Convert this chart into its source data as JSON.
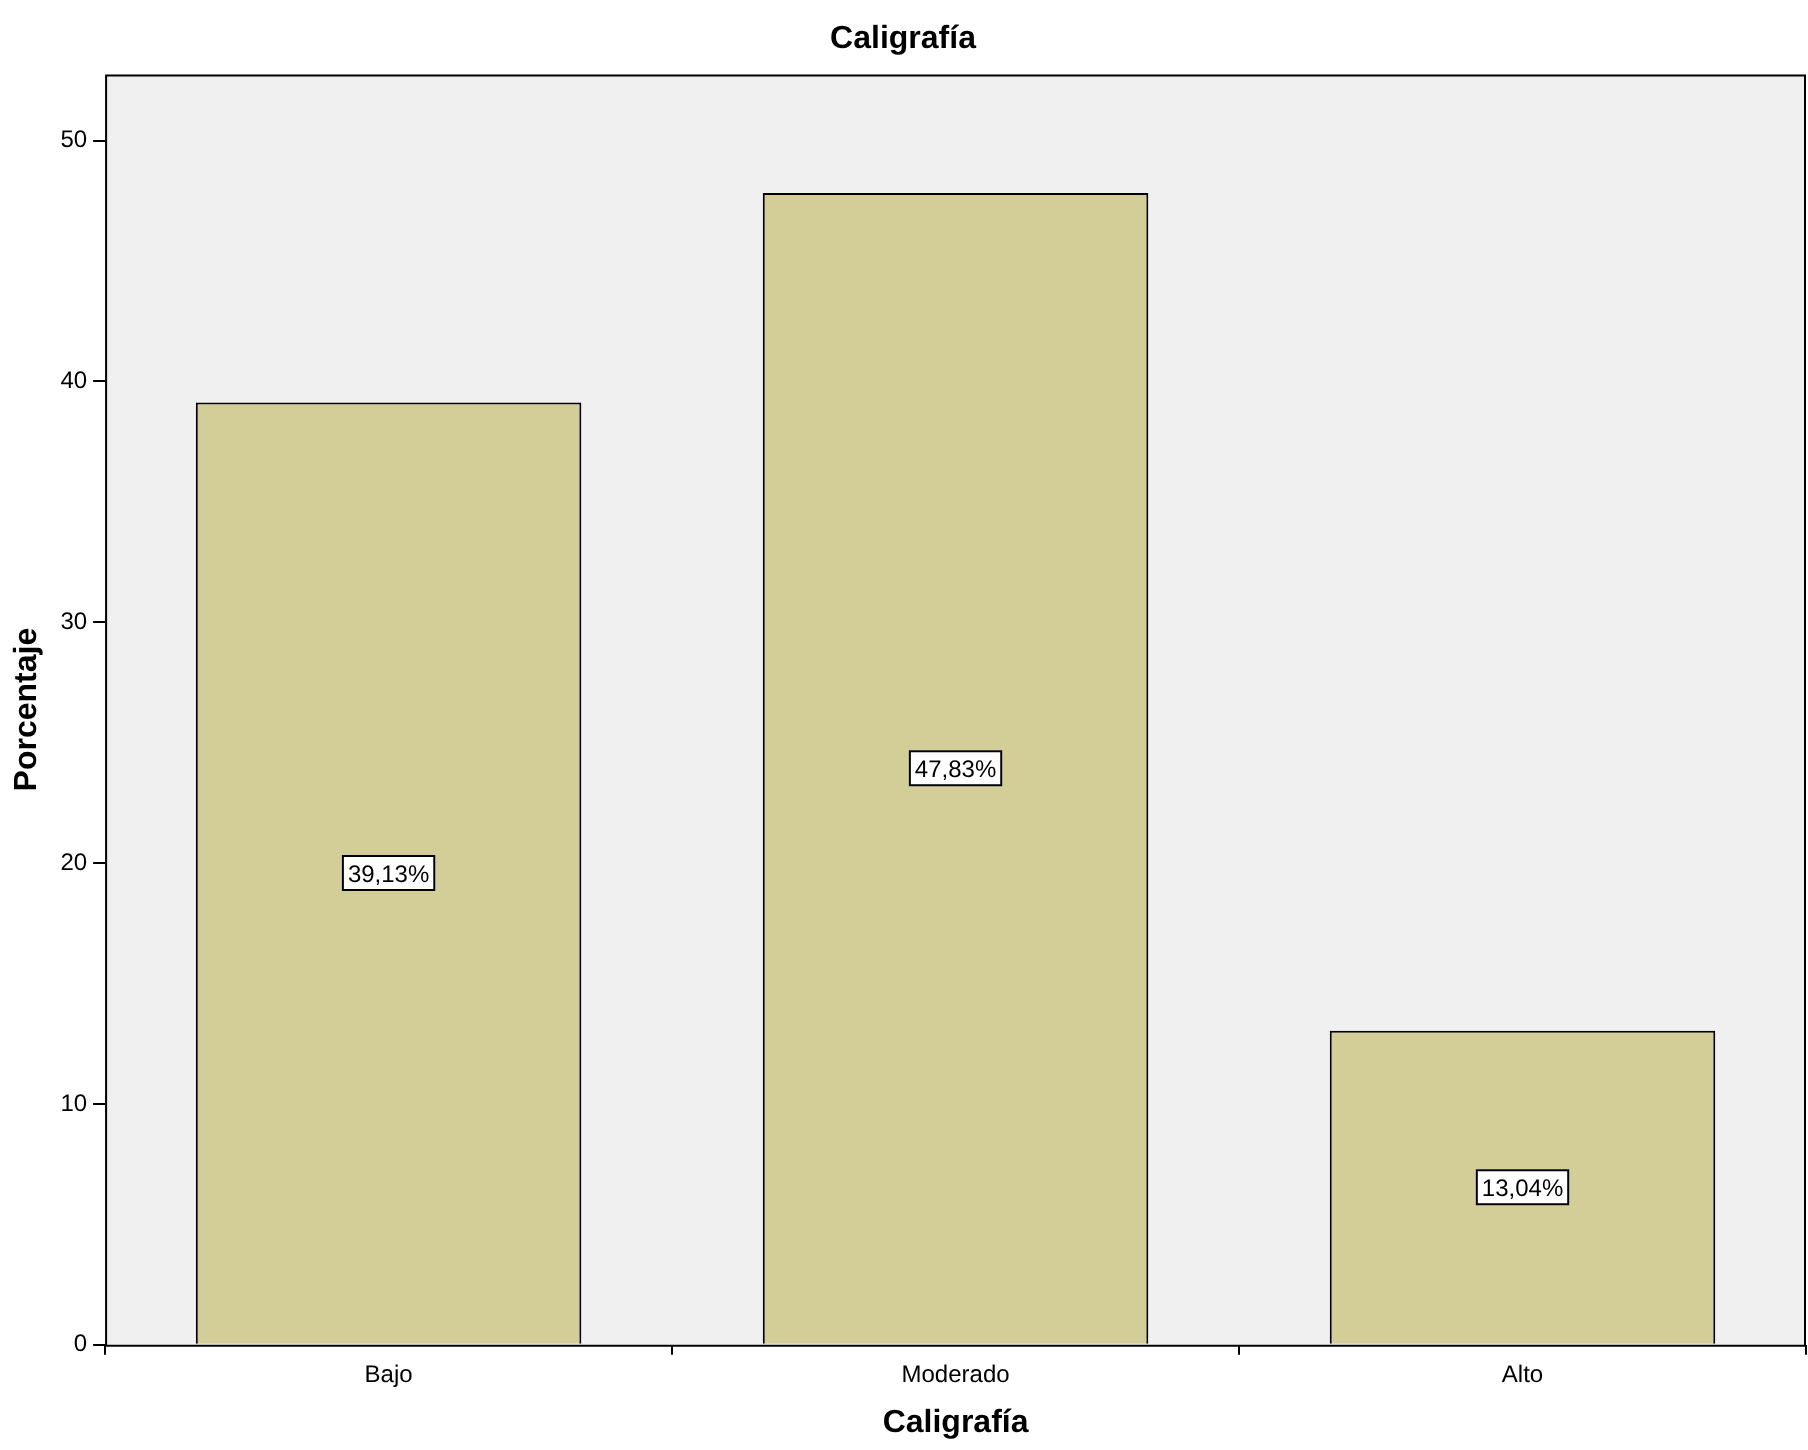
{
  "chart_data": {
    "type": "bar",
    "title": "Caligrafía",
    "xlabel": "Caligrafía",
    "ylabel": "Porcentaje",
    "categories": [
      "Bajo",
      "Moderado",
      "Alto"
    ],
    "values": [
      39.13,
      47.83,
      13.04
    ],
    "value_labels": [
      "39,13%",
      "47,83%",
      "13,04%"
    ],
    "color": "#d3ce97",
    "ylim": [
      0,
      52.75
    ],
    "yticks": [
      0,
      10,
      20,
      30,
      40,
      50
    ]
  }
}
